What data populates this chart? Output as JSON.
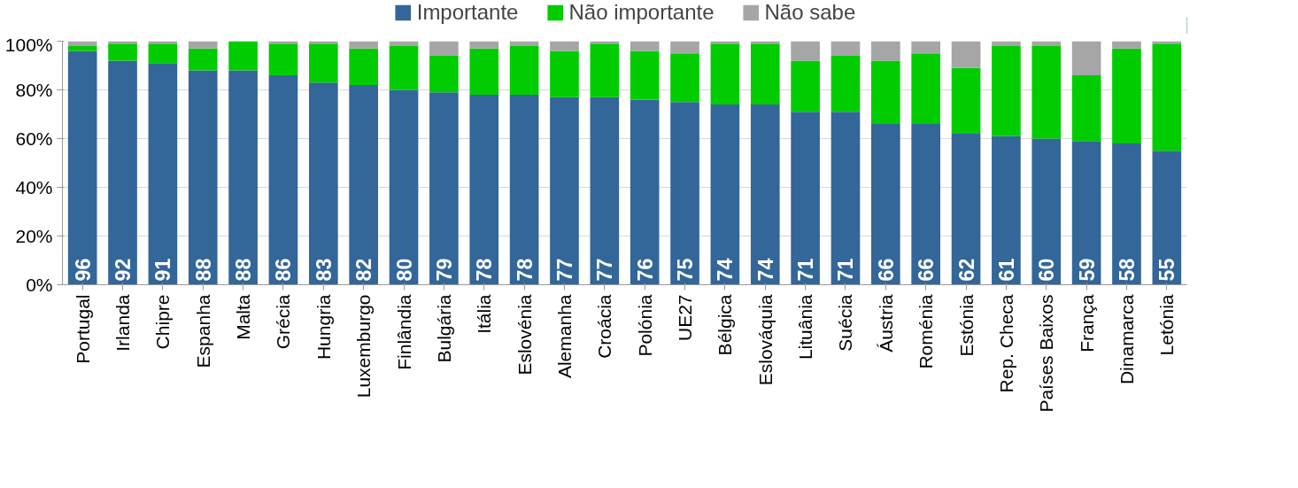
{
  "chart_data": {
    "type": "bar",
    "stacked": true,
    "categories": [
      "Portugal",
      "Irlanda",
      "Chipre",
      "Espanha",
      "Malta",
      "Grécia",
      "Hungria",
      "Luxemburgo",
      "Finlândia",
      "Bulgária",
      "Itália",
      "Eslovénia",
      "Alemanha",
      "Croácia",
      "Polónia",
      "UE27",
      "Bélgica",
      "Eslováquia",
      "Lituânia",
      "Suécia",
      "Áustria",
      "Roménia",
      "Estónia",
      "Rep. Checa",
      "Países Baixos",
      "França",
      "Dinamarca",
      "Letónia"
    ],
    "series": [
      {
        "name": "Importante",
        "color": "#336699",
        "values": [
          96,
          92,
          91,
          88,
          88,
          86,
          83,
          82,
          80,
          79,
          78,
          78,
          77,
          77,
          76,
          75,
          74,
          74,
          71,
          71,
          66,
          66,
          62,
          61,
          60,
          59,
          58,
          55
        ],
        "value_labels": [
          "96",
          "92",
          "91",
          "88",
          "88",
          "86",
          "83",
          "82",
          "80",
          "79",
          "78",
          "78",
          "77",
          "77",
          "76",
          "75",
          "74",
          "74",
          "71",
          "71",
          "66",
          "66",
          "62",
          "61",
          "60",
          "59",
          "58",
          "55"
        ]
      },
      {
        "name": "Não importante",
        "color": "#00cc00",
        "values": [
          2,
          7,
          8,
          9,
          12,
          13,
          16,
          15,
          18,
          15,
          19,
          20,
          19,
          22,
          20,
          20,
          25,
          25,
          21,
          23,
          26,
          29,
          27,
          37,
          38,
          27,
          39,
          44
        ]
      },
      {
        "name": "Não sabe",
        "color": "#a6a6a6",
        "values": [
          2,
          1,
          1,
          3,
          0,
          1,
          1,
          3,
          2,
          6,
          3,
          2,
          4,
          1,
          4,
          5,
          1,
          1,
          8,
          6,
          8,
          5,
          11,
          2,
          2,
          14,
          3,
          1
        ]
      }
    ],
    "ylim": [
      0,
      100
    ],
    "yticks": [
      {
        "value": 0,
        "label": "0%"
      },
      {
        "value": 20,
        "label": "20%"
      },
      {
        "value": 40,
        "label": "40%"
      },
      {
        "value": 60,
        "label": "60%"
      },
      {
        "value": 80,
        "label": "80%"
      },
      {
        "value": 100,
        "label": "100%"
      }
    ],
    "grid": "y",
    "legend": "top"
  }
}
